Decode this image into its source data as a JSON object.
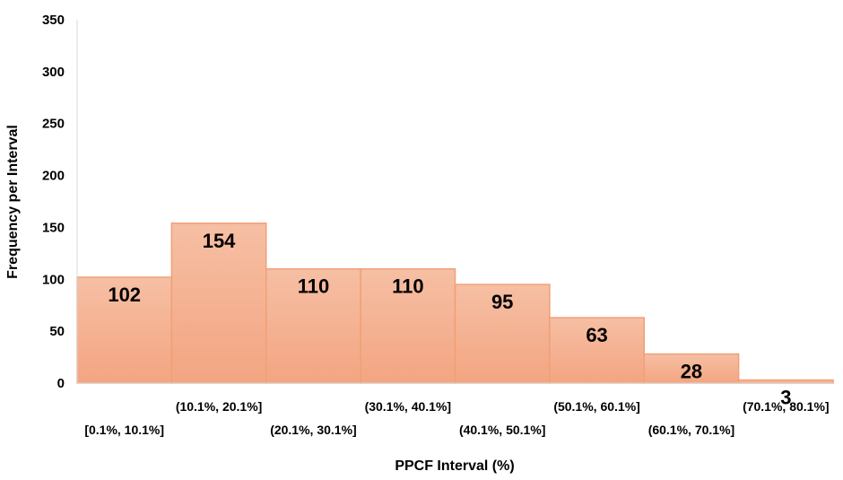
{
  "chart_data": {
    "type": "bar",
    "categories": [
      "[0.1%, 10.1%]",
      "(10.1%, 20.1%]",
      "(20.1%, 30.1%]",
      "(30.1%, 40.1%]",
      "(40.1%, 50.1%]",
      "(50.1%, 60.1%]",
      "(60.1%, 70.1%]",
      "(70.1%, 80.1%]"
    ],
    "values": [
      102,
      154,
      110,
      110,
      95,
      63,
      28,
      3
    ],
    "data_labels": [
      "102",
      "154",
      "110",
      "110",
      "95",
      "63",
      "28",
      "3"
    ],
    "xlabel": "PPCF  Interval (%)",
    "ylabel": "Frequency per Interval",
    "ylim": [
      0,
      350
    ],
    "yticks": [
      0,
      50,
      100,
      150,
      200,
      250,
      300,
      350
    ],
    "ytick_labels": [
      "0",
      "50",
      "100",
      "150",
      "200",
      "250",
      "300",
      "350"
    ],
    "grid": false,
    "legend": "none",
    "colors": {
      "bar_top": "#F6BFA4",
      "bar_bottom": "#F3A581",
      "bar_edge": "#F0A077",
      "axis": "#D9D9D9"
    }
  }
}
